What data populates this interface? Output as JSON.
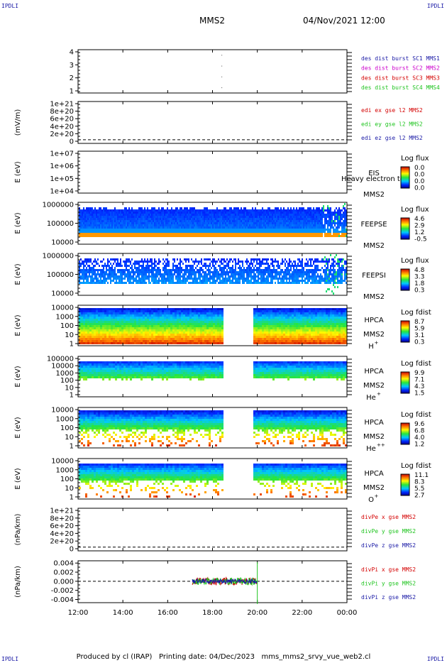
{
  "header": {
    "corner_label": "IPDLI",
    "title": "MMS2",
    "datetime": "04/Nov/2021 12:00"
  },
  "footer": {
    "text": "Produced by cl (IRAP)   Printing date: 04/Dec/2023   mms_mms2_srvy_vue_web2.cl"
  },
  "colors": {
    "blue": "#1a1aa6",
    "magenta": "#cc00cc",
    "red": "#d40000",
    "green": "#1fc41f"
  },
  "chart_data": {
    "type": "heatmap",
    "x_tick_labels": [
      "12:00",
      "14:00",
      "16:00",
      "18:00",
      "20:00",
      "22:00",
      "00:00"
    ],
    "x_range_hours": [
      12,
      24
    ],
    "panels": [
      {
        "id": "burst",
        "type": "line",
        "ylabel": "",
        "y_ticks": [
          "4",
          "3",
          "2",
          "1"
        ],
        "ylim": [
          0.5,
          4.5
        ],
        "series": [
          {
            "name": "des dist burst SC1 MMS1",
            "color": "#1a1aa6"
          },
          {
            "name": "des dist burst SC2 MMS2",
            "color": "#cc00cc"
          },
          {
            "name": "des dist burst SC3 MMS3",
            "color": "#d40000"
          },
          {
            "name": "des dist burst SC4 MMS4",
            "color": "#1fc41f"
          }
        ],
        "marks_time": 18.4
      },
      {
        "id": "edi",
        "type": "line",
        "ylabel": "(mV/m)",
        "y_ticks": [
          "1e+21",
          "8e+20",
          "6e+20",
          "4e+20",
          "2e+20",
          "0"
        ],
        "ylim": [
          -1e+20,
          1.05e+21
        ],
        "zero_line": true,
        "series": [
          {
            "name": "edi ex gse l2 MMS2",
            "color": "#d40000"
          },
          {
            "name": "edi ey gse l2 MMS2",
            "color": "#1fc41f"
          },
          {
            "name": "edi ez gse l2 MMS2",
            "color": "#1a1aa6"
          }
        ]
      },
      {
        "id": "eis",
        "type": "heatmap",
        "ylabel": "E (eV)",
        "y_ticks": [
          "1e+07",
          "1e+06",
          "1e+05",
          "1e+04"
        ],
        "labels": [
          "EIS",
          "MMS2"
        ],
        "overlay_text": "Heavy electron to",
        "colorbar": {
          "title": "Log flux",
          "ticks": [
            "0.0",
            "0.0",
            "0.0",
            "0.0"
          ]
        },
        "coverage": "none"
      },
      {
        "id": "feepse",
        "type": "heatmap",
        "ylabel": "E (eV)",
        "y_ticks": [
          "1000000",
          "100000",
          "10000"
        ],
        "labels": [
          "FEEPSE",
          "MMS2"
        ],
        "colorbar": {
          "title": "Log flux",
          "ticks": [
            "4.6",
            "2.9",
            "1.2",
            "-0.5"
          ]
        },
        "coverage": "full"
      },
      {
        "id": "feepsi",
        "type": "heatmap",
        "ylabel": "E (eV)",
        "y_ticks": [
          "1000000",
          "100000",
          "10000"
        ],
        "labels": [
          "FEEPSI",
          "MMS2"
        ],
        "colorbar": {
          "title": "Log flux",
          "ticks": [
            "4.8",
            "3.3",
            "1.8",
            "0.3"
          ]
        },
        "coverage": "full"
      },
      {
        "id": "hpca_h",
        "type": "heatmap",
        "ylabel": "E (eV)",
        "y_ticks": [
          "10000",
          "1000",
          "100",
          "10",
          "1"
        ],
        "labels": [
          "HPCA",
          "MMS2"
        ],
        "species": "H",
        "species_sup": "+",
        "colorbar": {
          "title": "Log fdist",
          "ticks": [
            "8.7",
            "5.9",
            "3.1",
            "0.3"
          ]
        },
        "gap_hours": [
          18.4,
          19.8
        ]
      },
      {
        "id": "hpca_he1",
        "type": "heatmap",
        "ylabel": "E (eV)",
        "y_ticks": [
          "100000",
          "10000",
          "1000",
          "100",
          "10",
          "1"
        ],
        "labels": [
          "HPCA",
          "MMS2"
        ],
        "species": "He",
        "species_sup": "+",
        "colorbar": {
          "title": "Log fdist",
          "ticks": [
            "9.9",
            "7.1",
            "4.3",
            "1.5"
          ]
        },
        "gap_hours": [
          18.4,
          19.8
        ]
      },
      {
        "id": "hpca_he2",
        "type": "heatmap",
        "ylabel": "E (eV)",
        "y_ticks": [
          "10000",
          "1000",
          "100",
          "10",
          "1"
        ],
        "labels": [
          "HPCA",
          "MMS2"
        ],
        "species": "He",
        "species_sup": "++",
        "colorbar": {
          "title": "Log fdist",
          "ticks": [
            "9.6",
            "6.8",
            "4.0",
            "1.2"
          ]
        },
        "gap_hours": [
          18.4,
          19.8
        ]
      },
      {
        "id": "hpca_o",
        "type": "heatmap",
        "ylabel": "E (eV)",
        "y_ticks": [
          "10000",
          "1000",
          "100",
          "10",
          "1"
        ],
        "labels": [
          "HPCA",
          "MMS2"
        ],
        "species": "O",
        "species_sup": "+",
        "colorbar": {
          "title": "Log fdist",
          "ticks": [
            "11.1",
            "8.3",
            "5.5",
            "2.7"
          ]
        },
        "gap_hours": [
          18.4,
          19.8
        ]
      },
      {
        "id": "divpe",
        "type": "line",
        "ylabel": "(nPa/km)",
        "y_ticks": [
          "1e+21",
          "8e+20",
          "6e+20",
          "4e+20",
          "2e+20",
          "0"
        ],
        "ylim": [
          -1e+20,
          1.05e+21
        ],
        "zero_line": true,
        "series": [
          {
            "name": "divPe x gse MMS2",
            "color": "#d40000"
          },
          {
            "name": "divPe y gse MMS2",
            "color": "#1fc41f"
          },
          {
            "name": "divPe z gse MMS2",
            "color": "#1a1aa6"
          }
        ]
      },
      {
        "id": "divpi",
        "type": "line",
        "ylabel": "(nPa/km)",
        "y_ticks": [
          "0.004",
          "0.002",
          "0.000",
          "-0.002",
          "-0.004"
        ],
        "y_values": [
          0.004,
          0.002,
          0.0,
          -0.002,
          -0.004
        ],
        "ylim": [
          -0.0047,
          0.0045
        ],
        "zero_line": true,
        "series": [
          {
            "name": "divPi x gse MMS2",
            "color": "#d40000"
          },
          {
            "name": "divPi y gse MMS2",
            "color": "#1fc41f"
          },
          {
            "name": "divPi z gse MMS2",
            "color": "#1a1aa6"
          }
        ],
        "data_range_hours": [
          17.1,
          20.0
        ],
        "amplitude": 0.0008
      }
    ]
  }
}
